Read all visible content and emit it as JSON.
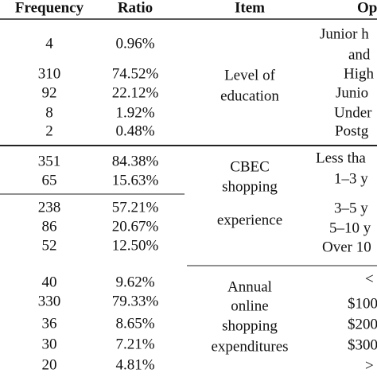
{
  "table": {
    "header": [
      "Frequency",
      "Ratio",
      "Item",
      "Op"
    ],
    "groups": [
      {
        "item": [
          "Level of",
          "education"
        ],
        "rows": [
          {
            "frequency": "4",
            "ratio": "0.96%",
            "option": [
              "Junior h",
              "and"
            ]
          },
          {
            "frequency": "310",
            "ratio": "74.52%",
            "option": [
              "High"
            ]
          },
          {
            "frequency": "92",
            "ratio": "22.12%",
            "option": [
              "Junio"
            ]
          },
          {
            "frequency": "8",
            "ratio": "1.92%",
            "option": [
              "Under"
            ]
          },
          {
            "frequency": "2",
            "ratio": "0.48%",
            "option": [
              "Postg"
            ]
          }
        ]
      },
      {
        "item": [
          "CBEC",
          "shopping",
          "experience"
        ],
        "rows": [
          {
            "frequency": "351",
            "ratio": "84.38%",
            "option": [
              "Less tha"
            ]
          },
          {
            "frequency": "65",
            "ratio": "15.63%",
            "option": [
              "1–3 y"
            ]
          },
          {
            "frequency": "238",
            "ratio": "57.21%",
            "option": [
              "3–5 y"
            ]
          },
          {
            "frequency": "86",
            "ratio": "20.67%",
            "option": [
              "5–10 y"
            ]
          },
          {
            "frequency": "52",
            "ratio": "12.50%",
            "option": [
              "Over 10"
            ]
          }
        ]
      },
      {
        "item": [
          "Annual",
          "online",
          "shopping",
          "expenditures"
        ],
        "rows": [
          {
            "frequency": "40",
            "ratio": "9.62%",
            "option": [
              "<"
            ]
          },
          {
            "frequency": "330",
            "ratio": "79.33%",
            "option": [
              "$100"
            ]
          },
          {
            "frequency": "36",
            "ratio": "8.65%",
            "option": [
              "$200"
            ]
          },
          {
            "frequency": "30",
            "ratio": "7.21%",
            "option": [
              "$300"
            ]
          },
          {
            "frequency": "20",
            "ratio": "4.81%",
            "option": [
              ">"
            ]
          }
        ]
      }
    ]
  }
}
